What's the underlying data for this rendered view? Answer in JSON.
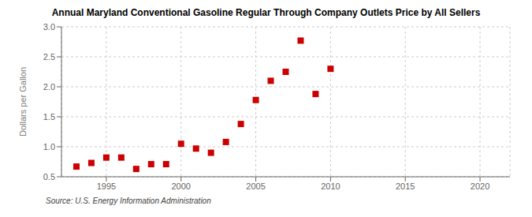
{
  "chart_data": {
    "type": "scatter",
    "title": "Annual Maryland Conventional Gasoline Regular Through Company Outlets Price by All Sellers",
    "ylabel": "Dollars per Gallon",
    "annotation": "Source: U.S. Energy Information Administration",
    "x": [
      1993,
      1994,
      1995,
      1996,
      1997,
      1998,
      1999,
      2000,
      2001,
      2002,
      2003,
      2004,
      2005,
      2006,
      2007,
      2008,
      2009,
      2010
    ],
    "values": [
      0.67,
      0.73,
      0.82,
      0.82,
      0.63,
      0.71,
      0.71,
      1.05,
      0.97,
      0.9,
      1.08,
      1.38,
      1.78,
      2.1,
      2.25,
      2.77,
      1.88,
      2.3
    ],
    "color": "#cc0000",
    "marker": "square",
    "xlim": [
      1992,
      2022
    ],
    "ylim": [
      0.5,
      3.0
    ],
    "xticks": [
      1995,
      2000,
      2005,
      2010,
      2015,
      2020
    ],
    "yticks": [
      0.5,
      {
        "value": 1.0,
        "label": "1.0"
      },
      1.5,
      {
        "value": 2.0,
        "label": "2.0"
      },
      2.5,
      {
        "value": 3.0,
        "label": "3.0"
      }
    ],
    "grid": true
  }
}
